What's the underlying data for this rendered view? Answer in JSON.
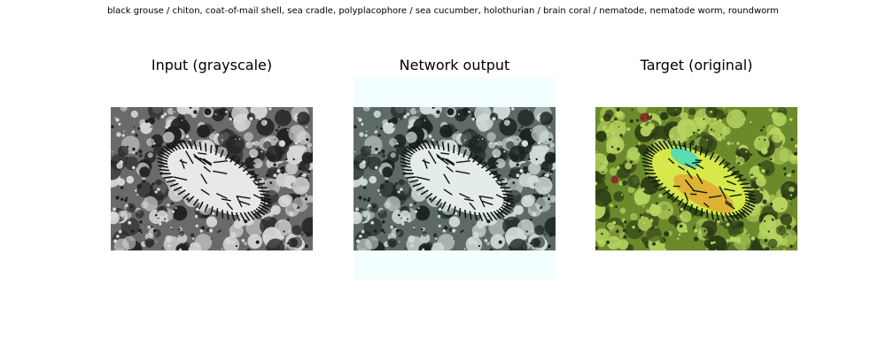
{
  "figure": {
    "suptitle": "black grouse / chiton, coat-of-mail shell, sea cradle, polyplacophore / sea cucumber, holothurian / brain coral / nematode, nematode worm, roundworm"
  },
  "chart_data": [
    {
      "type": "image",
      "title": "Input (grayscale)",
      "colors": {
        "shell": "#e8e8e8",
        "stripe": "#111111",
        "reef_light": "#d8d8d8",
        "reef_dark": "#202020",
        "base": "#6a6a6a"
      }
    },
    {
      "type": "image",
      "title": "Network output",
      "colors": {
        "shell": "#e4ece9",
        "stripe": "#0e1412",
        "reef_light": "#d2dcd8",
        "reef_dark": "#1a2220",
        "base": "#5e6a66",
        "halo": "#f3fffe"
      }
    },
    {
      "type": "image",
      "title": "Target (original)",
      "colors": {
        "shell": "#d6e84a",
        "shell2": "#e0a830",
        "stripe": "#0d1a10",
        "reef_light": "#b8d460",
        "reef_dark": "#2a3a14",
        "base": "#6c8a2c",
        "accent": "#8a1e2a"
      }
    }
  ]
}
